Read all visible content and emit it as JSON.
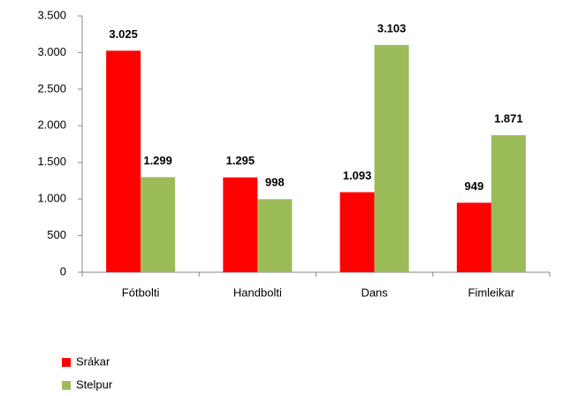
{
  "chart_data": {
    "type": "bar",
    "categories": [
      "Fótbolti",
      "Handbolti",
      "Dans",
      "Fimleikar"
    ],
    "series": [
      {
        "name": "Srákar",
        "color": "#ff0000",
        "values": [
          3025,
          1295,
          1093,
          949
        ],
        "value_labels": [
          "3.025",
          "1.295",
          "1.093",
          "949"
        ]
      },
      {
        "name": "Stelpur",
        "color": "#9bbb59",
        "values": [
          1299,
          998,
          3103,
          1871
        ],
        "value_labels": [
          "1.299",
          "998",
          "3.103",
          "1.871"
        ]
      }
    ],
    "ylim": [
      0,
      3500
    ],
    "yticks": [
      0,
      500,
      {
        "value": 1000,
        "label": "1.000"
      },
      {
        "value": 1500,
        "label": "1.500"
      },
      {
        "value": 2000,
        "label": "2.000"
      },
      {
        "value": 2500,
        "label": "2.500"
      },
      {
        "value": 3000,
        "label": "3.000"
      },
      {
        "value": 3500,
        "label": "3.500"
      }
    ],
    "grid": false,
    "legend": "bottom-left"
  }
}
